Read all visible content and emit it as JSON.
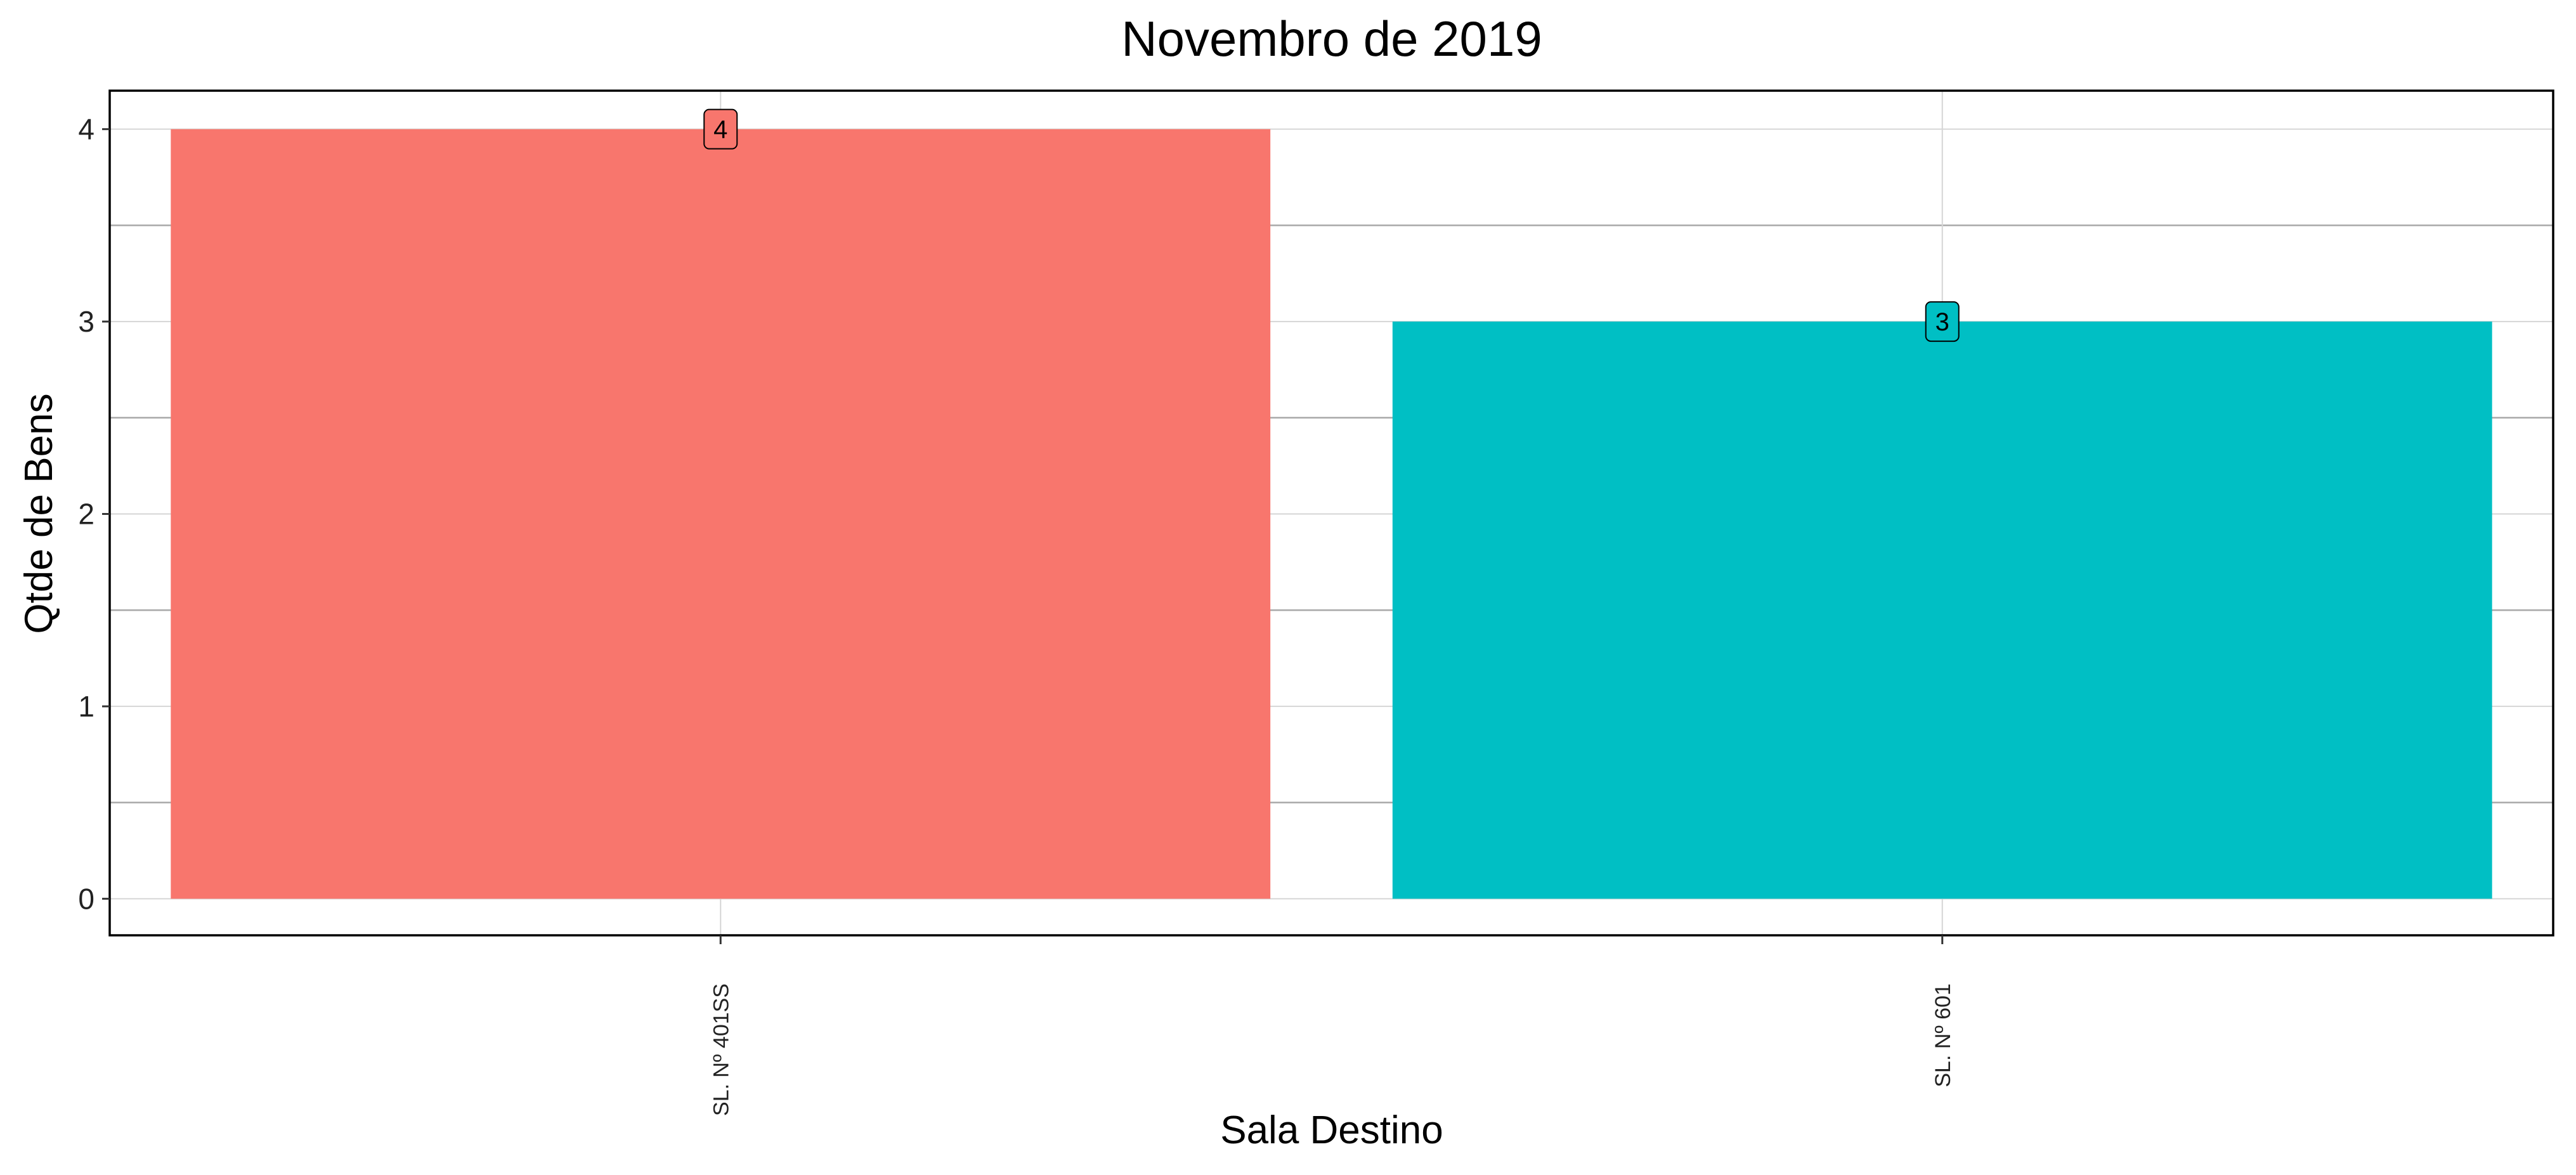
{
  "chart_data": {
    "type": "bar",
    "title": "Novembro de 2019",
    "xlabel": "Sala Destino",
    "ylabel": "Qtde de Bens",
    "categories": [
      "SL. Nº 401SS",
      "SL. Nº 601"
    ],
    "values": [
      4,
      3
    ],
    "colors": [
      "#F8766D",
      "#00BFC4"
    ],
    "data_labels": [
      "4",
      "3"
    ],
    "ylim": [
      -0.19,
      4.2
    ],
    "yticks": [
      0,
      1,
      2,
      3,
      4
    ],
    "ytick_labels": [
      "0",
      "1",
      "2",
      "3",
      "4"
    ],
    "x_tick_rotation": -90,
    "grid": true,
    "legend": "none"
  }
}
